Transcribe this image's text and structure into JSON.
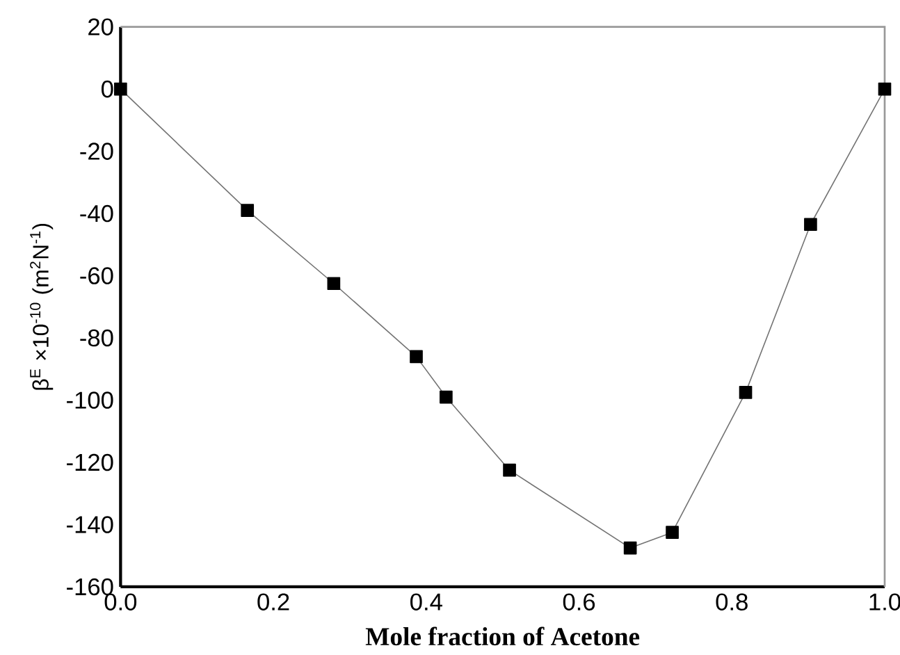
{
  "chart_data": {
    "type": "line",
    "xlabel": "Mole fraction of Acetone",
    "ylabel": "β$^{E}$ ×10$^{-10}$ (m$^{2}$N$^{-1}$)",
    "x": [
      0,
      0.166,
      0.279,
      0.387,
      0.426,
      0.509,
      0.667,
      0.722,
      0.818,
      0.903,
      1.0
    ],
    "series": [
      {
        "color": "#000000",
        "values": [
          0,
          -39,
          -62.5,
          -86,
          -99,
          -122.5,
          -147.5,
          -142.5,
          -97.5,
          -43.5,
          0
        ]
      }
    ],
    "marker": "square",
    "xlim": [
      0,
      1
    ],
    "ylim": [
      -160,
      20
    ],
    "xticks": [
      {
        "value": 0,
        "label": "0.0"
      },
      {
        "value": 0.2,
        "label": "0.2"
      },
      {
        "value": 0.4,
        "label": "0.4"
      },
      {
        "value": 0.6,
        "label": "0.6"
      },
      {
        "value": 0.8,
        "label": "0.8"
      },
      {
        "value": 1.0,
        "label": "1.0"
      }
    ],
    "yticks": [
      20,
      0,
      -20,
      -40,
      -60,
      -80,
      -100,
      -120,
      -140,
      -160
    ]
  }
}
